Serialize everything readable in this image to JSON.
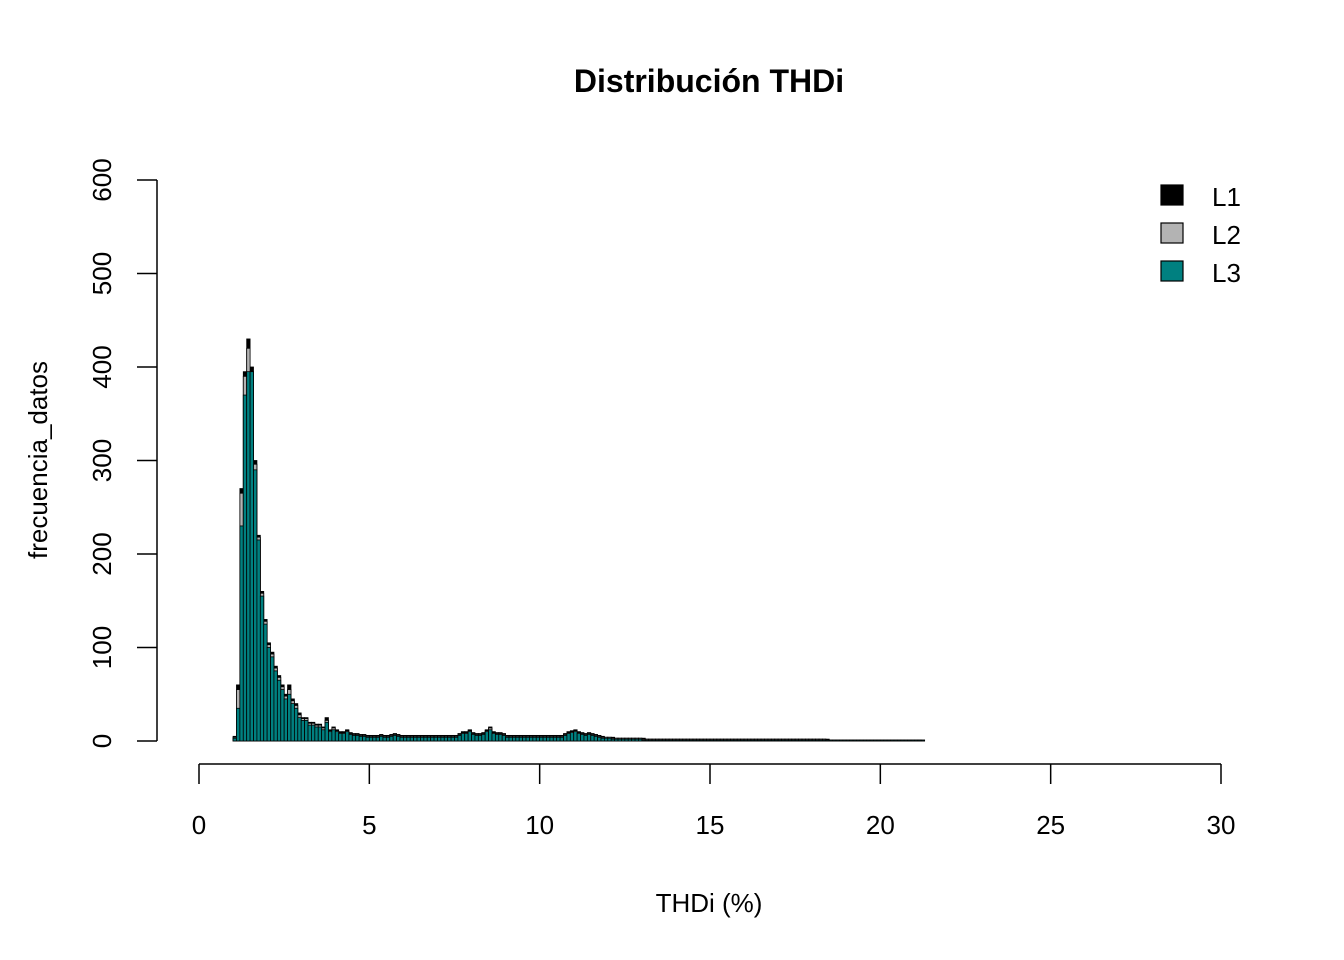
{
  "chart_data": {
    "type": "bar",
    "title": "Distribución THDi",
    "xlabel": "THDi (%)",
    "ylabel": "frecuencia_datos",
    "xlim": [
      0,
      30
    ],
    "ylim": [
      0,
      600
    ],
    "x_ticks": [
      "0",
      "5",
      "10",
      "15",
      "20",
      "25",
      "30"
    ],
    "y_ticks": [
      "0",
      "100",
      "200",
      "300",
      "400",
      "500",
      "600"
    ],
    "grid": false,
    "legend_position": "top-right",
    "bin_width": 0.1,
    "bin_start": 1.0,
    "series": [
      {
        "name": "L1",
        "color": "#000000",
        "values": [
          5,
          60,
          270,
          395,
          430,
          400,
          300,
          220,
          160,
          130,
          105,
          95,
          80,
          70,
          60,
          50,
          60,
          45,
          40,
          30,
          25,
          25,
          20,
          20,
          18,
          18,
          15,
          25,
          12,
          15,
          12,
          10,
          10,
          12,
          9,
          8,
          8,
          7,
          7,
          6,
          6,
          6,
          6,
          7,
          6,
          6,
          7,
          8,
          7,
          6,
          6,
          6,
          6,
          6,
          6,
          6,
          6,
          6,
          6,
          6,
          6,
          6,
          6,
          6,
          6,
          6,
          8,
          10,
          10,
          12,
          9,
          8,
          8,
          9,
          12,
          15,
          10,
          9,
          9,
          8,
          6,
          6,
          6,
          6,
          6,
          6,
          6,
          6,
          6,
          6,
          6,
          6,
          6,
          6,
          6,
          6,
          6,
          8,
          10,
          11,
          12,
          10,
          9,
          8,
          9,
          8,
          7,
          6,
          5,
          4,
          4,
          4,
          3,
          3,
          3,
          3,
          3,
          3,
          3,
          3,
          3,
          2,
          2,
          2,
          2,
          2,
          2,
          2,
          2,
          2,
          2,
          2,
          2,
          2,
          2,
          2,
          2,
          2,
          2,
          2,
          2,
          2,
          2,
          2,
          2,
          2,
          2,
          2,
          2,
          2,
          2,
          2,
          2,
          2,
          2,
          2,
          2,
          2,
          2,
          2,
          2,
          2,
          2,
          2,
          2,
          2,
          2,
          2,
          2,
          2,
          2,
          2,
          2,
          2,
          2,
          1,
          1,
          1,
          1,
          1,
          1,
          1,
          1,
          1,
          1,
          1,
          1,
          1,
          1,
          1,
          1,
          1,
          1,
          1,
          1,
          1,
          1,
          1,
          1,
          1,
          1,
          1,
          1
        ]
      },
      {
        "name": "L2",
        "color": "#b3b3b3",
        "values": [
          4,
          55,
          265,
          390,
          420,
          395,
          296,
          218,
          158,
          128,
          103,
          93,
          78,
          68,
          58,
          48,
          55,
          43,
          38,
          28,
          24,
          24,
          19,
          19,
          17,
          17,
          14,
          22,
          11,
          14,
          11,
          9,
          9,
          11,
          8,
          7,
          7,
          6,
          6,
          5,
          5,
          5,
          5,
          6,
          5,
          5,
          6,
          7,
          6,
          5,
          5,
          5,
          5,
          5,
          5,
          5,
          5,
          5,
          5,
          5,
          5,
          5,
          5,
          5,
          5,
          5,
          7,
          9,
          9,
          11,
          8,
          7,
          7,
          8,
          11,
          14,
          9,
          8,
          8,
          7,
          5,
          5,
          5,
          5,
          5,
          5,
          5,
          5,
          5,
          5,
          5,
          5,
          5,
          5,
          5,
          5,
          5,
          7,
          9,
          10,
          11,
          9,
          8,
          7,
          8,
          7,
          6,
          5,
          4,
          4,
          4,
          3,
          3,
          3,
          3,
          3,
          3,
          3,
          3,
          3,
          2,
          2,
          2,
          2,
          2,
          2,
          2,
          2,
          2,
          2,
          2,
          2,
          2,
          2,
          2,
          2,
          2,
          2,
          2,
          2,
          2,
          2,
          2,
          2,
          2,
          2,
          2,
          2,
          2,
          2,
          2,
          2,
          2,
          2,
          2,
          2,
          2,
          2,
          2,
          2,
          2,
          2,
          2,
          2,
          2,
          2,
          2,
          2,
          2,
          2,
          2,
          2,
          2,
          2,
          1,
          1,
          1,
          1,
          1,
          1,
          1,
          1,
          1,
          1,
          1,
          1,
          1,
          1,
          1,
          1,
          1,
          1,
          1,
          1,
          1,
          1,
          1,
          1,
          1,
          1,
          1,
          1
        ]
      },
      {
        "name": "L3",
        "color": "#008080",
        "values": [
          3,
          35,
          230,
          370,
          395,
          395,
          290,
          215,
          155,
          125,
          100,
          90,
          75,
          65,
          55,
          45,
          50,
          40,
          35,
          25,
          22,
          22,
          17,
          17,
          15,
          15,
          12,
          20,
          10,
          12,
          10,
          8,
          8,
          10,
          7,
          6,
          6,
          5,
          5,
          4,
          4,
          4,
          4,
          5,
          4,
          4,
          5,
          6,
          5,
          4,
          4,
          4,
          4,
          4,
          4,
          4,
          4,
          4,
          4,
          4,
          4,
          4,
          4,
          4,
          4,
          4,
          6,
          8,
          8,
          10,
          7,
          6,
          6,
          7,
          10,
          12,
          8,
          7,
          7,
          6,
          4,
          4,
          4,
          4,
          4,
          4,
          4,
          4,
          4,
          4,
          4,
          4,
          4,
          4,
          4,
          4,
          4,
          6,
          8,
          9,
          10,
          8,
          7,
          6,
          7,
          6,
          5,
          4,
          3,
          3,
          3,
          2,
          2,
          2,
          2,
          2,
          2,
          2,
          2,
          2,
          1,
          1,
          1,
          1,
          1,
          1,
          1,
          1,
          1,
          1,
          1,
          1,
          1,
          1,
          1,
          1,
          1,
          1,
          1,
          1,
          1,
          1,
          1,
          1,
          1,
          1,
          1,
          1,
          1,
          1,
          1,
          1,
          1,
          1,
          1,
          1,
          1,
          1,
          1,
          1,
          1,
          1,
          1,
          1,
          1,
          1,
          1,
          1,
          1,
          1,
          1,
          1,
          1,
          1,
          1,
          1,
          1,
          1,
          1,
          1,
          1,
          1,
          1,
          1,
          1,
          1,
          1,
          1,
          1,
          1,
          1,
          1,
          1,
          1,
          1,
          1,
          1,
          1,
          1,
          1,
          1,
          1,
          1
        ]
      }
    ]
  }
}
